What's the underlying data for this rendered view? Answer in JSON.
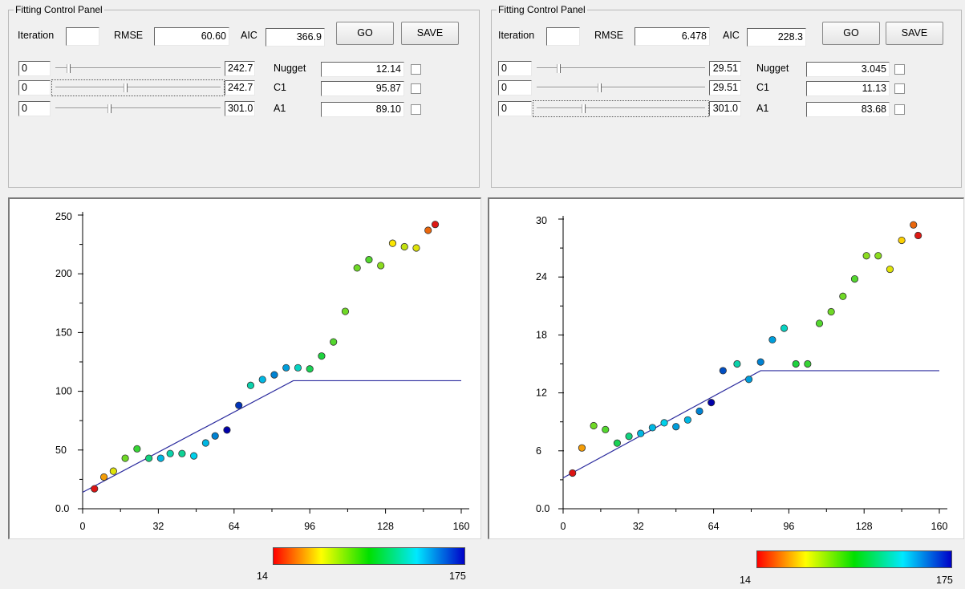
{
  "panels": [
    {
      "group_title": "Fitting Control Panel",
      "iteration_label": "Iteration",
      "iteration_value": "",
      "rmse_label": "RMSE",
      "rmse_value": "60.60",
      "aic_label": "AIC",
      "aic_value": "366.9",
      "go_label": "GO",
      "save_label": "SAVE",
      "params": [
        {
          "min": "0",
          "max": "242.7",
          "position": 0.07,
          "name": "Nugget",
          "value": "12.14",
          "checked": false
        },
        {
          "min": "0",
          "max": "242.7",
          "position": 0.42,
          "name": "C1",
          "value": "95.87",
          "checked": false
        },
        {
          "min": "0",
          "max": "301.0",
          "position": 0.32,
          "name": "A1",
          "value": "89.10",
          "checked": false
        }
      ],
      "colorbar": {
        "min_label": "14",
        "max_label": "175"
      },
      "chart_data": {
        "type": "scatter",
        "x_ticks": [
          "0",
          "32",
          "64",
          "96",
          "128",
          "160"
        ],
        "y_ticks": [
          "0.0",
          "50",
          "100",
          "150",
          "200",
          "250"
        ],
        "xlim": [
          0,
          160
        ],
        "ylim": [
          0,
          250
        ],
        "points": [
          {
            "x": 5,
            "y": 17,
            "c": 14
          },
          {
            "x": 9,
            "y": 27,
            "c": 40
          },
          {
            "x": 13,
            "y": 32,
            "c": 60
          },
          {
            "x": 18,
            "y": 43,
            "c": 80
          },
          {
            "x": 23,
            "y": 51,
            "c": 90
          },
          {
            "x": 28,
            "y": 43,
            "c": 110
          },
          {
            "x": 33,
            "y": 43,
            "c": 140
          },
          {
            "x": 37,
            "y": 47,
            "c": 120
          },
          {
            "x": 42,
            "y": 47,
            "c": 115
          },
          {
            "x": 47,
            "y": 45,
            "c": 135
          },
          {
            "x": 52,
            "y": 56,
            "c": 140
          },
          {
            "x": 56,
            "y": 62,
            "c": 150
          },
          {
            "x": 61,
            "y": 67,
            "c": 175
          },
          {
            "x": 66,
            "y": 88,
            "c": 165
          },
          {
            "x": 71,
            "y": 105,
            "c": 120
          },
          {
            "x": 76,
            "y": 110,
            "c": 140
          },
          {
            "x": 81,
            "y": 114,
            "c": 150
          },
          {
            "x": 86,
            "y": 120,
            "c": 145
          },
          {
            "x": 91,
            "y": 120,
            "c": 125
          },
          {
            "x": 96,
            "y": 119,
            "c": 100
          },
          {
            "x": 101,
            "y": 130,
            "c": 95
          },
          {
            "x": 106,
            "y": 142,
            "c": 85
          },
          {
            "x": 111,
            "y": 168,
            "c": 80
          },
          {
            "x": 116,
            "y": 205,
            "c": 80
          },
          {
            "x": 121,
            "y": 212,
            "c": 85
          },
          {
            "x": 126,
            "y": 207,
            "c": 75
          },
          {
            "x": 131,
            "y": 226,
            "c": 55
          },
          {
            "x": 136,
            "y": 223,
            "c": 65
          },
          {
            "x": 141,
            "y": 222,
            "c": 60
          },
          {
            "x": 146,
            "y": 237,
            "c": 30
          },
          {
            "x": 149,
            "y": 242,
            "c": 15
          }
        ],
        "model_line": [
          [
            0,
            14
          ],
          [
            89,
            109
          ],
          [
            160,
            109
          ]
        ],
        "line_color": "#2b2b9e"
      }
    },
    {
      "group_title": "Fitting Control Panel",
      "iteration_label": "Iteration",
      "iteration_value": "",
      "rmse_label": "RMSE",
      "rmse_value": "6.478",
      "aic_label": "AIC",
      "aic_value": "228.3",
      "go_label": "GO",
      "save_label": "SAVE",
      "params": [
        {
          "min": "0",
          "max": "29.51",
          "position": 0.12,
          "name": "Nugget",
          "value": "3.045",
          "checked": false
        },
        {
          "min": "0",
          "max": "29.51",
          "position": 0.37,
          "name": "C1",
          "value": "11.13",
          "checked": false
        },
        {
          "min": "0",
          "max": "301.0",
          "position": 0.27,
          "name": "A1",
          "value": "83.68",
          "checked": false
        }
      ],
      "colorbar": {
        "min_label": "14",
        "max_label": "175"
      },
      "chart_data": {
        "type": "scatter",
        "x_ticks": [
          "0",
          "32",
          "64",
          "96",
          "128",
          "160"
        ],
        "y_ticks": [
          "0.0",
          "6",
          "12",
          "18",
          "24",
          "30"
        ],
        "xlim": [
          0,
          160
        ],
        "ylim": [
          0,
          30
        ],
        "points": [
          {
            "x": 4,
            "y": 3.7,
            "c": 14
          },
          {
            "x": 8,
            "y": 6.3,
            "c": 40
          },
          {
            "x": 13,
            "y": 8.6,
            "c": 80
          },
          {
            "x": 18,
            "y": 8.2,
            "c": 85
          },
          {
            "x": 23,
            "y": 6.8,
            "c": 100
          },
          {
            "x": 28,
            "y": 7.5,
            "c": 110
          },
          {
            "x": 33,
            "y": 7.8,
            "c": 140
          },
          {
            "x": 38,
            "y": 8.4,
            "c": 140
          },
          {
            "x": 43,
            "y": 8.9,
            "c": 135
          },
          {
            "x": 48,
            "y": 8.5,
            "c": 145
          },
          {
            "x": 53,
            "y": 9.2,
            "c": 140
          },
          {
            "x": 58,
            "y": 10.1,
            "c": 150
          },
          {
            "x": 63,
            "y": 11.0,
            "c": 175
          },
          {
            "x": 68,
            "y": 14.3,
            "c": 160
          },
          {
            "x": 74,
            "y": 15.0,
            "c": 120
          },
          {
            "x": 79,
            "y": 13.4,
            "c": 145
          },
          {
            "x": 84,
            "y": 15.2,
            "c": 150
          },
          {
            "x": 89,
            "y": 17.5,
            "c": 145
          },
          {
            "x": 94,
            "y": 18.7,
            "c": 125
          },
          {
            "x": 99,
            "y": 15.0,
            "c": 95
          },
          {
            "x": 104,
            "y": 15.0,
            "c": 90
          },
          {
            "x": 109,
            "y": 19.2,
            "c": 85
          },
          {
            "x": 114,
            "y": 20.4,
            "c": 80
          },
          {
            "x": 119,
            "y": 22.0,
            "c": 80
          },
          {
            "x": 124,
            "y": 23.8,
            "c": 85
          },
          {
            "x": 129,
            "y": 26.2,
            "c": 75
          },
          {
            "x": 134,
            "y": 26.2,
            "c": 75
          },
          {
            "x": 139,
            "y": 24.8,
            "c": 60
          },
          {
            "x": 144,
            "y": 27.8,
            "c": 50
          },
          {
            "x": 149,
            "y": 29.4,
            "c": 30
          },
          {
            "x": 151,
            "y": 28.3,
            "c": 15
          }
        ],
        "model_line": [
          [
            0,
            3.2
          ],
          [
            84,
            14.3
          ],
          [
            160,
            14.3
          ]
        ],
        "line_color": "#2b2b9e"
      }
    }
  ]
}
